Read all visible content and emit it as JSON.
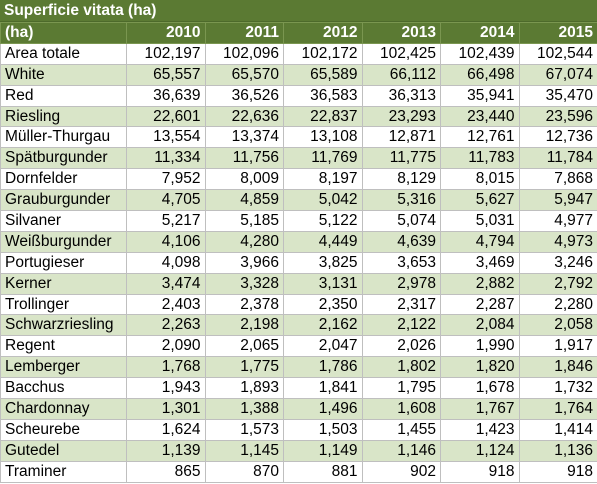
{
  "sheet": {
    "title": "Superficie vitata (ha)",
    "header": {
      "corner": "(ha)",
      "years": [
        "2010",
        "2011",
        "2012",
        "2013",
        "2014",
        "2015"
      ]
    },
    "rows": [
      {
        "label": "Area totale",
        "values": [
          "102,197",
          "102,096",
          "102,172",
          "102,425",
          "102,439",
          "102,544"
        ]
      },
      {
        "label": "White",
        "values": [
          "65,557",
          "65,570",
          "65,589",
          "66,112",
          "66,498",
          "67,074"
        ]
      },
      {
        "label": "Red",
        "values": [
          "36,639",
          "36,526",
          "36,583",
          "36,313",
          "35,941",
          "35,470"
        ]
      },
      {
        "label": "Riesling",
        "values": [
          "22,601",
          "22,636",
          "22,837",
          "23,293",
          "23,440",
          "23,596"
        ]
      },
      {
        "label": "Müller-Thurgau",
        "values": [
          "13,554",
          "13,374",
          "13,108",
          "12,871",
          "12,761",
          "12,736"
        ]
      },
      {
        "label": "Spätburgunder",
        "values": [
          "11,334",
          "11,756",
          "11,769",
          "11,775",
          "11,783",
          "11,784"
        ]
      },
      {
        "label": "Dornfelder",
        "values": [
          "7,952",
          "8,009",
          "8,197",
          "8,129",
          "8,015",
          "7,868"
        ]
      },
      {
        "label": "Grauburgunder",
        "values": [
          "4,705",
          "4,859",
          "5,042",
          "5,316",
          "5,627",
          "5,947"
        ]
      },
      {
        "label": "Silvaner",
        "values": [
          "5,217",
          "5,185",
          "5,122",
          "5,074",
          "5,031",
          "4,977"
        ]
      },
      {
        "label": "Weißburgunder",
        "values": [
          "4,106",
          "4,280",
          "4,449",
          "4,639",
          "4,794",
          "4,973"
        ]
      },
      {
        "label": "Portugieser",
        "values": [
          "4,098",
          "3,966",
          "3,825",
          "3,653",
          "3,469",
          "3,246"
        ]
      },
      {
        "label": "Kerner",
        "values": [
          "3,474",
          "3,328",
          "3,131",
          "2,978",
          "2,882",
          "2,792"
        ]
      },
      {
        "label": "Trollinger",
        "values": [
          "2,403",
          "2,378",
          "2,350",
          "2,317",
          "2,287",
          "2,280"
        ]
      },
      {
        "label": "Schwarzriesling",
        "values": [
          "2,263",
          "2,198",
          "2,162",
          "2,122",
          "2,084",
          "2,058"
        ]
      },
      {
        "label": "Regent",
        "values": [
          "2,090",
          "2,065",
          "2,047",
          "2,026",
          "1,990",
          "1,917"
        ]
      },
      {
        "label": "Lemberger",
        "values": [
          "1,768",
          "1,775",
          "1,786",
          "1,802",
          "1,820",
          "1,846"
        ]
      },
      {
        "label": "Bacchus",
        "values": [
          "1,943",
          "1,893",
          "1,841",
          "1,795",
          "1,678",
          "1,732"
        ]
      },
      {
        "label": "Chardonnay",
        "values": [
          "1,301",
          "1,388",
          "1,496",
          "1,608",
          "1,767",
          "1,764"
        ]
      },
      {
        "label": "Scheurebe",
        "values": [
          "1,624",
          "1,573",
          "1,503",
          "1,455",
          "1,423",
          "1,414"
        ]
      },
      {
        "label": "Gutedel",
        "values": [
          "1,139",
          "1,145",
          "1,149",
          "1,146",
          "1,124",
          "1,136"
        ]
      },
      {
        "label": "Traminer",
        "values": [
          "865",
          "870",
          "881",
          "902",
          "918",
          "918"
        ]
      }
    ]
  },
  "colors": {
    "header_bg": "#5b7a33",
    "band_bg": "#d9e5c8",
    "row_bg": "#ffffff",
    "gridline": "#bfbfbf"
  }
}
